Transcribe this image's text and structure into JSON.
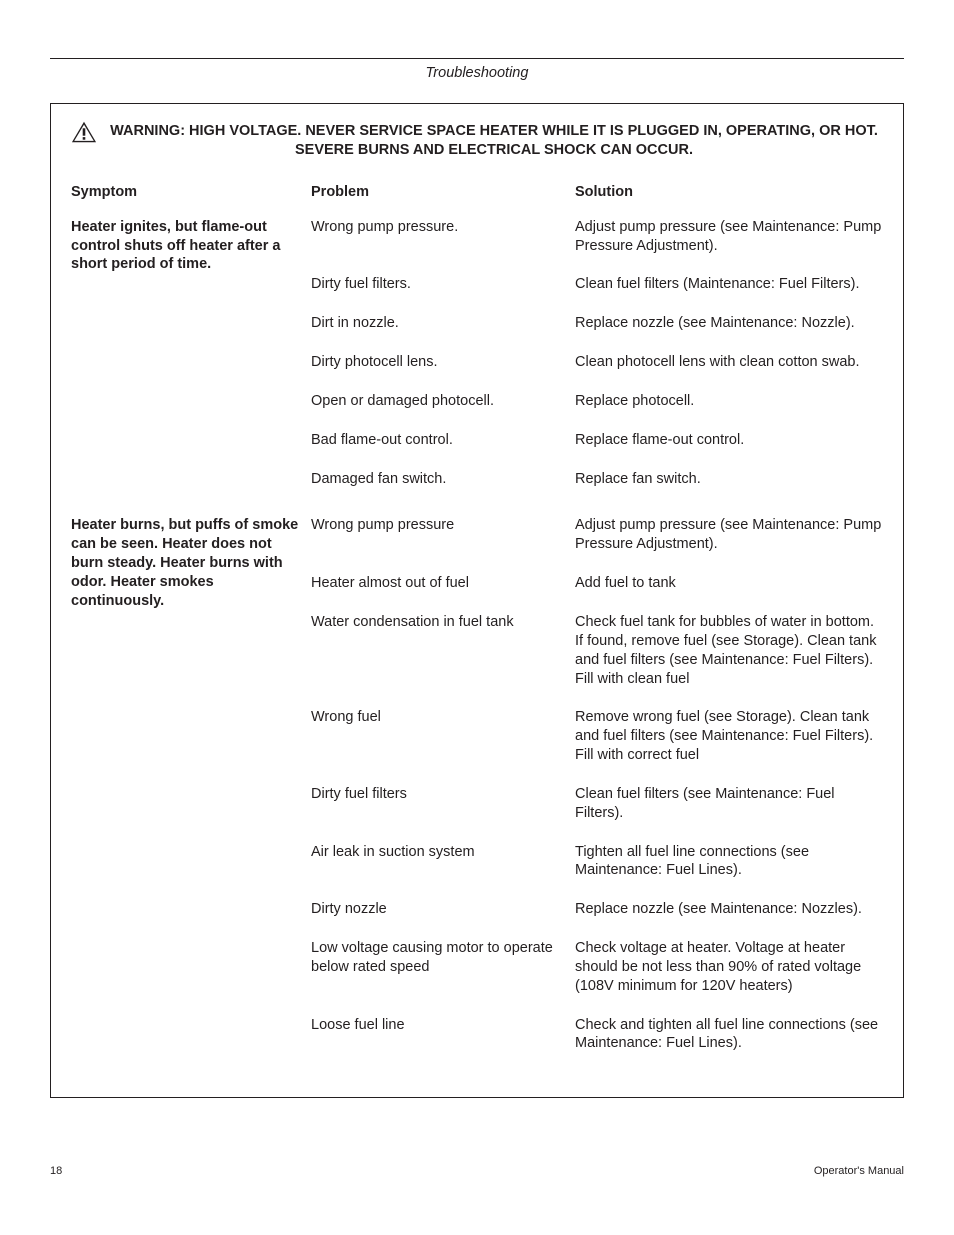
{
  "section_title": "Troubleshooting",
  "warning_text": "WARNING: HIGH VOLTAGE. NEVER SERVICE SPACE HEATER WHILE IT IS PLUGGED IN, OPERATING, OR HOT. SEVERE BURNS AND ELECTRICAL SHOCK CAN OCCUR.",
  "headers": {
    "symptom": "Symptom",
    "problem": "Problem",
    "solution": "Solution"
  },
  "groups": [
    {
      "symptom": "Heater ignites, but flame-out control shuts off heater after a short period of time.",
      "items": [
        {
          "problem": "Wrong pump pressure.",
          "solution": "Adjust pump pressure (see Maintenance: Pump Pressure Adjustment)."
        },
        {
          "problem": "Dirty fuel filters.",
          "solution": "Clean fuel filters (Maintenance: Fuel Filters)."
        },
        {
          "problem": "Dirt in nozzle.",
          "solution": "Replace nozzle (see Maintenance: Nozzle)."
        },
        {
          "problem": "Dirty photocell lens.",
          "solution": "Clean photocell lens with clean cotton swab."
        },
        {
          "problem": "Open or damaged photocell.",
          "solution": "Replace photocell."
        },
        {
          "problem": "Bad flame-out control.",
          "solution": "Replace flame-out control."
        },
        {
          "problem": "Damaged fan switch.",
          "solution": "Replace fan switch."
        }
      ]
    },
    {
      "symptom": "Heater burns, but puffs of smoke can be seen. Heater does not burn steady.\nHeater burns with odor. Heater smokes continuously.",
      "items": [
        {
          "problem": "Wrong pump pressure",
          "solution": "Adjust pump pressure (see Maintenance: Pump Pressure Adjustment)."
        },
        {
          "problem": "Heater almost out of fuel",
          "solution": "Add fuel to tank"
        },
        {
          "problem": "Water condensation in fuel tank",
          "solution": "Check fuel tank for bubbles of water in bottom. If found, remove fuel (see Storage). Clean tank and fuel filters (see Maintenance: Fuel Filters). Fill with clean fuel"
        },
        {
          "problem": "Wrong fuel",
          "solution": "Remove wrong fuel (see Storage). Clean tank and fuel filters (see Maintenance: Fuel Filters). Fill with correct fuel"
        },
        {
          "problem": "Dirty fuel filters",
          "solution": "Clean fuel filters (see Maintenance: Fuel Filters)."
        },
        {
          "problem": "Air leak in suction system",
          "solution": "Tighten all fuel line connections (see Maintenance: Fuel Lines)."
        },
        {
          "problem": "Dirty nozzle",
          "solution": "Replace nozzle (see Maintenance: Nozzles)."
        },
        {
          "problem": "Low voltage causing motor to operate below rated speed",
          "solution": "Check voltage at heater. Voltage at heater should be not less than 90% of rated voltage (108V minimum for 120V heaters)"
        },
        {
          "problem": "Loose fuel line",
          "solution": "Check and tighten all fuel line connections (see Maintenance: Fuel Lines)."
        }
      ]
    }
  ],
  "footer": {
    "page_number": "18",
    "doc_label": "Operator's Manual"
  },
  "colors": {
    "text": "#231f20",
    "background": "#ffffff",
    "border": "#231f20"
  },
  "typography": {
    "body_font": "Arial, Helvetica, sans-serif",
    "body_size_pt": 11,
    "header_size_pt": 11,
    "footer_size_pt": 8.5
  }
}
